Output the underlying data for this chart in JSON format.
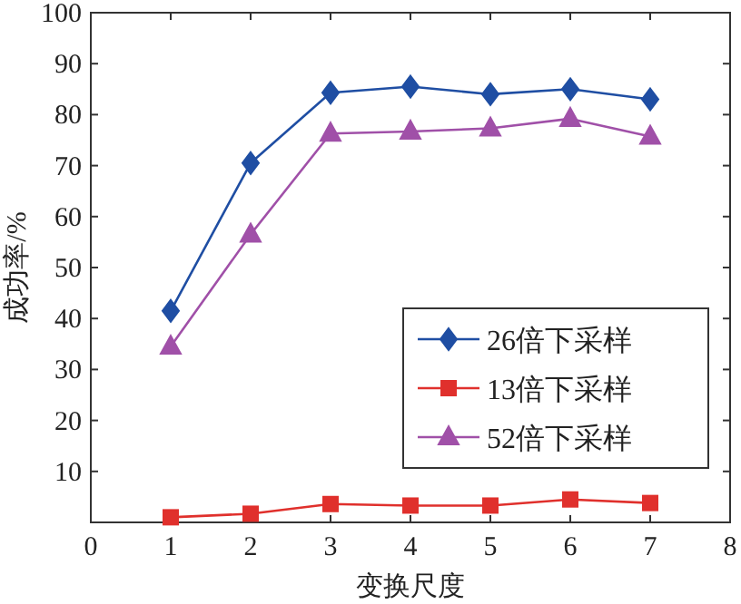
{
  "chart_data": {
    "type": "line",
    "xlabel": "变换尺度",
    "ylabel": "成功率/%",
    "x": [
      1,
      2,
      3,
      4,
      5,
      6,
      7
    ],
    "series": [
      {
        "name": "26倍下采样",
        "color": "#1f4ea3",
        "marker": "diamond",
        "values": [
          41.5,
          70.5,
          84.3,
          85.5,
          84,
          85,
          83
        ]
      },
      {
        "name": "13倍下采样",
        "color": "#e0302c",
        "marker": "square",
        "values": [
          1,
          1.7,
          3.6,
          3.3,
          3.3,
          4.5,
          3.8
        ]
      },
      {
        "name": "52倍下采样",
        "color": "#a050a8",
        "marker": "triangle",
        "values": [
          34.5,
          56.5,
          76.3,
          76.7,
          77.3,
          79.2,
          75.7
        ]
      }
    ],
    "xlim": [
      0,
      8
    ],
    "xticks": [
      0,
      1,
      2,
      3,
      4,
      5,
      6,
      7,
      8
    ],
    "ylim": [
      0,
      100
    ],
    "yticks": [
      {
        "value": 0,
        "label": null
      },
      10,
      20,
      30,
      40,
      50,
      60,
      70,
      80,
      90,
      100
    ],
    "grid": false,
    "legend": "bottom right",
    "line_style": "solid"
  }
}
